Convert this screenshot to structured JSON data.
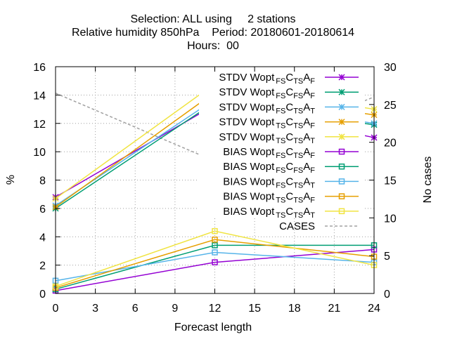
{
  "chart_data": {
    "type": "line",
    "title": [
      "Selection: ALL using     2 stations",
      "Relative humidity 850hPa    Period: 20180601-20180614",
      "Hours:  00"
    ],
    "xlabel": "Forecast length",
    "ylabel": "%",
    "y2label": "No cases",
    "xlim": [
      0,
      24
    ],
    "ylim": [
      0,
      16
    ],
    "y2lim": [
      0,
      30
    ],
    "xticks": [
      0,
      3,
      6,
      9,
      12,
      15,
      18,
      21,
      24
    ],
    "yticks": [
      0,
      2,
      4,
      6,
      8,
      10,
      12,
      14,
      16
    ],
    "y2ticks": [
      0,
      5,
      10,
      15,
      20,
      25,
      30
    ],
    "grid": true,
    "legend_position": "top-right",
    "x": [
      0,
      12,
      24
    ],
    "series": [
      {
        "name": "STDV Wopt FS CTS AF",
        "label_parts": [
          "STDV Wopt",
          "FS",
          "C",
          "TS",
          "A",
          "F"
        ],
        "color": "#9400d3",
        "marker": "x",
        "style": "solid",
        "values": [
          6.8,
          13.3,
          11.0
        ]
      },
      {
        "name": "STDV Wopt FS CFS AF",
        "label_parts": [
          "STDV Wopt",
          "FS",
          "C",
          "FS",
          "A",
          "F"
        ],
        "color": "#009e73",
        "marker": "x",
        "style": "solid",
        "values": [
          6.0,
          13.5,
          11.9
        ]
      },
      {
        "name": "STDV Wopt FS CTS AT",
        "label_parts": [
          "STDV Wopt",
          "FS",
          "C",
          "TS",
          "A",
          "T"
        ],
        "color": "#56b4e9",
        "marker": "x",
        "style": "solid",
        "values": [
          6.2,
          13.7,
          12.0
        ]
      },
      {
        "name": "STDV Wopt TS CTS AF",
        "label_parts": [
          "STDV Wopt",
          "TS",
          "C",
          "TS",
          "A",
          "F"
        ],
        "color": "#e69f00",
        "marker": "x",
        "style": "solid",
        "values": [
          6.1,
          14.2,
          12.6
        ]
      },
      {
        "name": "STDV Wopt TS CTS AT",
        "label_parts": [
          "STDV Wopt",
          "TS",
          "C",
          "TS",
          "A",
          "T"
        ],
        "color": "#f0e442",
        "marker": "x",
        "style": "solid",
        "values": [
          6.7,
          14.8,
          13.0
        ]
      },
      {
        "name": "BIAS Wopt FS CTS AF",
        "label_parts": [
          "BIAS Wopt",
          "FS",
          "C",
          "TS",
          "A",
          "F"
        ],
        "color": "#9400d3",
        "marker": "square",
        "style": "solid",
        "values": [
          0.2,
          2.2,
          3.1
        ]
      },
      {
        "name": "BIAS Wopt FS CFS AF",
        "label_parts": [
          "BIAS Wopt",
          "FS",
          "C",
          "FS",
          "A",
          "F"
        ],
        "color": "#009e73",
        "marker": "square",
        "style": "solid",
        "values": [
          0.3,
          3.4,
          3.4
        ]
      },
      {
        "name": "BIAS Wopt FS CTS AT",
        "label_parts": [
          "BIAS Wopt",
          "FS",
          "C",
          "TS",
          "A",
          "T"
        ],
        "color": "#56b4e9",
        "marker": "square",
        "style": "solid",
        "values": [
          0.9,
          2.9,
          2.2
        ]
      },
      {
        "name": "BIAS Wopt TS CTS AF",
        "label_parts": [
          "BIAS Wopt",
          "TS",
          "C",
          "TS",
          "A",
          "F"
        ],
        "color": "#e69f00",
        "marker": "square",
        "style": "solid",
        "values": [
          0.4,
          3.8,
          2.6
        ]
      },
      {
        "name": "BIAS Wopt TS CTS AT",
        "label_parts": [
          "BIAS Wopt",
          "TS",
          "C",
          "TS",
          "A",
          "T"
        ],
        "color": "#f0e442",
        "marker": "square",
        "style": "solid",
        "values": [
          0.5,
          4.4,
          2.0
        ]
      },
      {
        "name": "CASES",
        "label_parts": [
          "CASES"
        ],
        "color": "#a0a0a0",
        "marker": "none",
        "style": "dashed",
        "axis": "y2",
        "values": [
          26.5,
          17.5,
          26.0
        ]
      }
    ]
  }
}
